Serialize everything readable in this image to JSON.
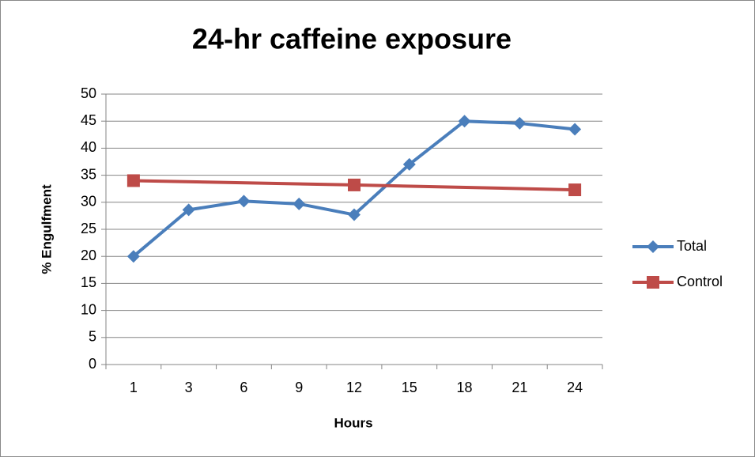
{
  "chart_data": {
    "type": "line",
    "title": "24-hr caffeine exposure",
    "x_label": "Hours",
    "y_label": "% Engulfment",
    "categories": [
      "1",
      "3",
      "6",
      "9",
      "12",
      "15",
      "18",
      "21",
      "24"
    ],
    "series": [
      {
        "name": "Total",
        "color": "#4a7ebb",
        "marker": "diamond",
        "values": [
          20,
          28.6,
          30.2,
          29.7,
          27.7,
          37,
          45,
          44.6,
          43.5
        ]
      },
      {
        "name": "Control",
        "color": "#be4b48",
        "marker": "square",
        "values": [
          34,
          null,
          null,
          null,
          33.2,
          null,
          null,
          null,
          32.3
        ]
      }
    ],
    "ylim": [
      0,
      50
    ],
    "yticks": [
      0,
      5,
      10,
      15,
      20,
      25,
      30,
      35,
      40,
      45,
      50
    ],
    "grid": true,
    "legend": "right"
  }
}
